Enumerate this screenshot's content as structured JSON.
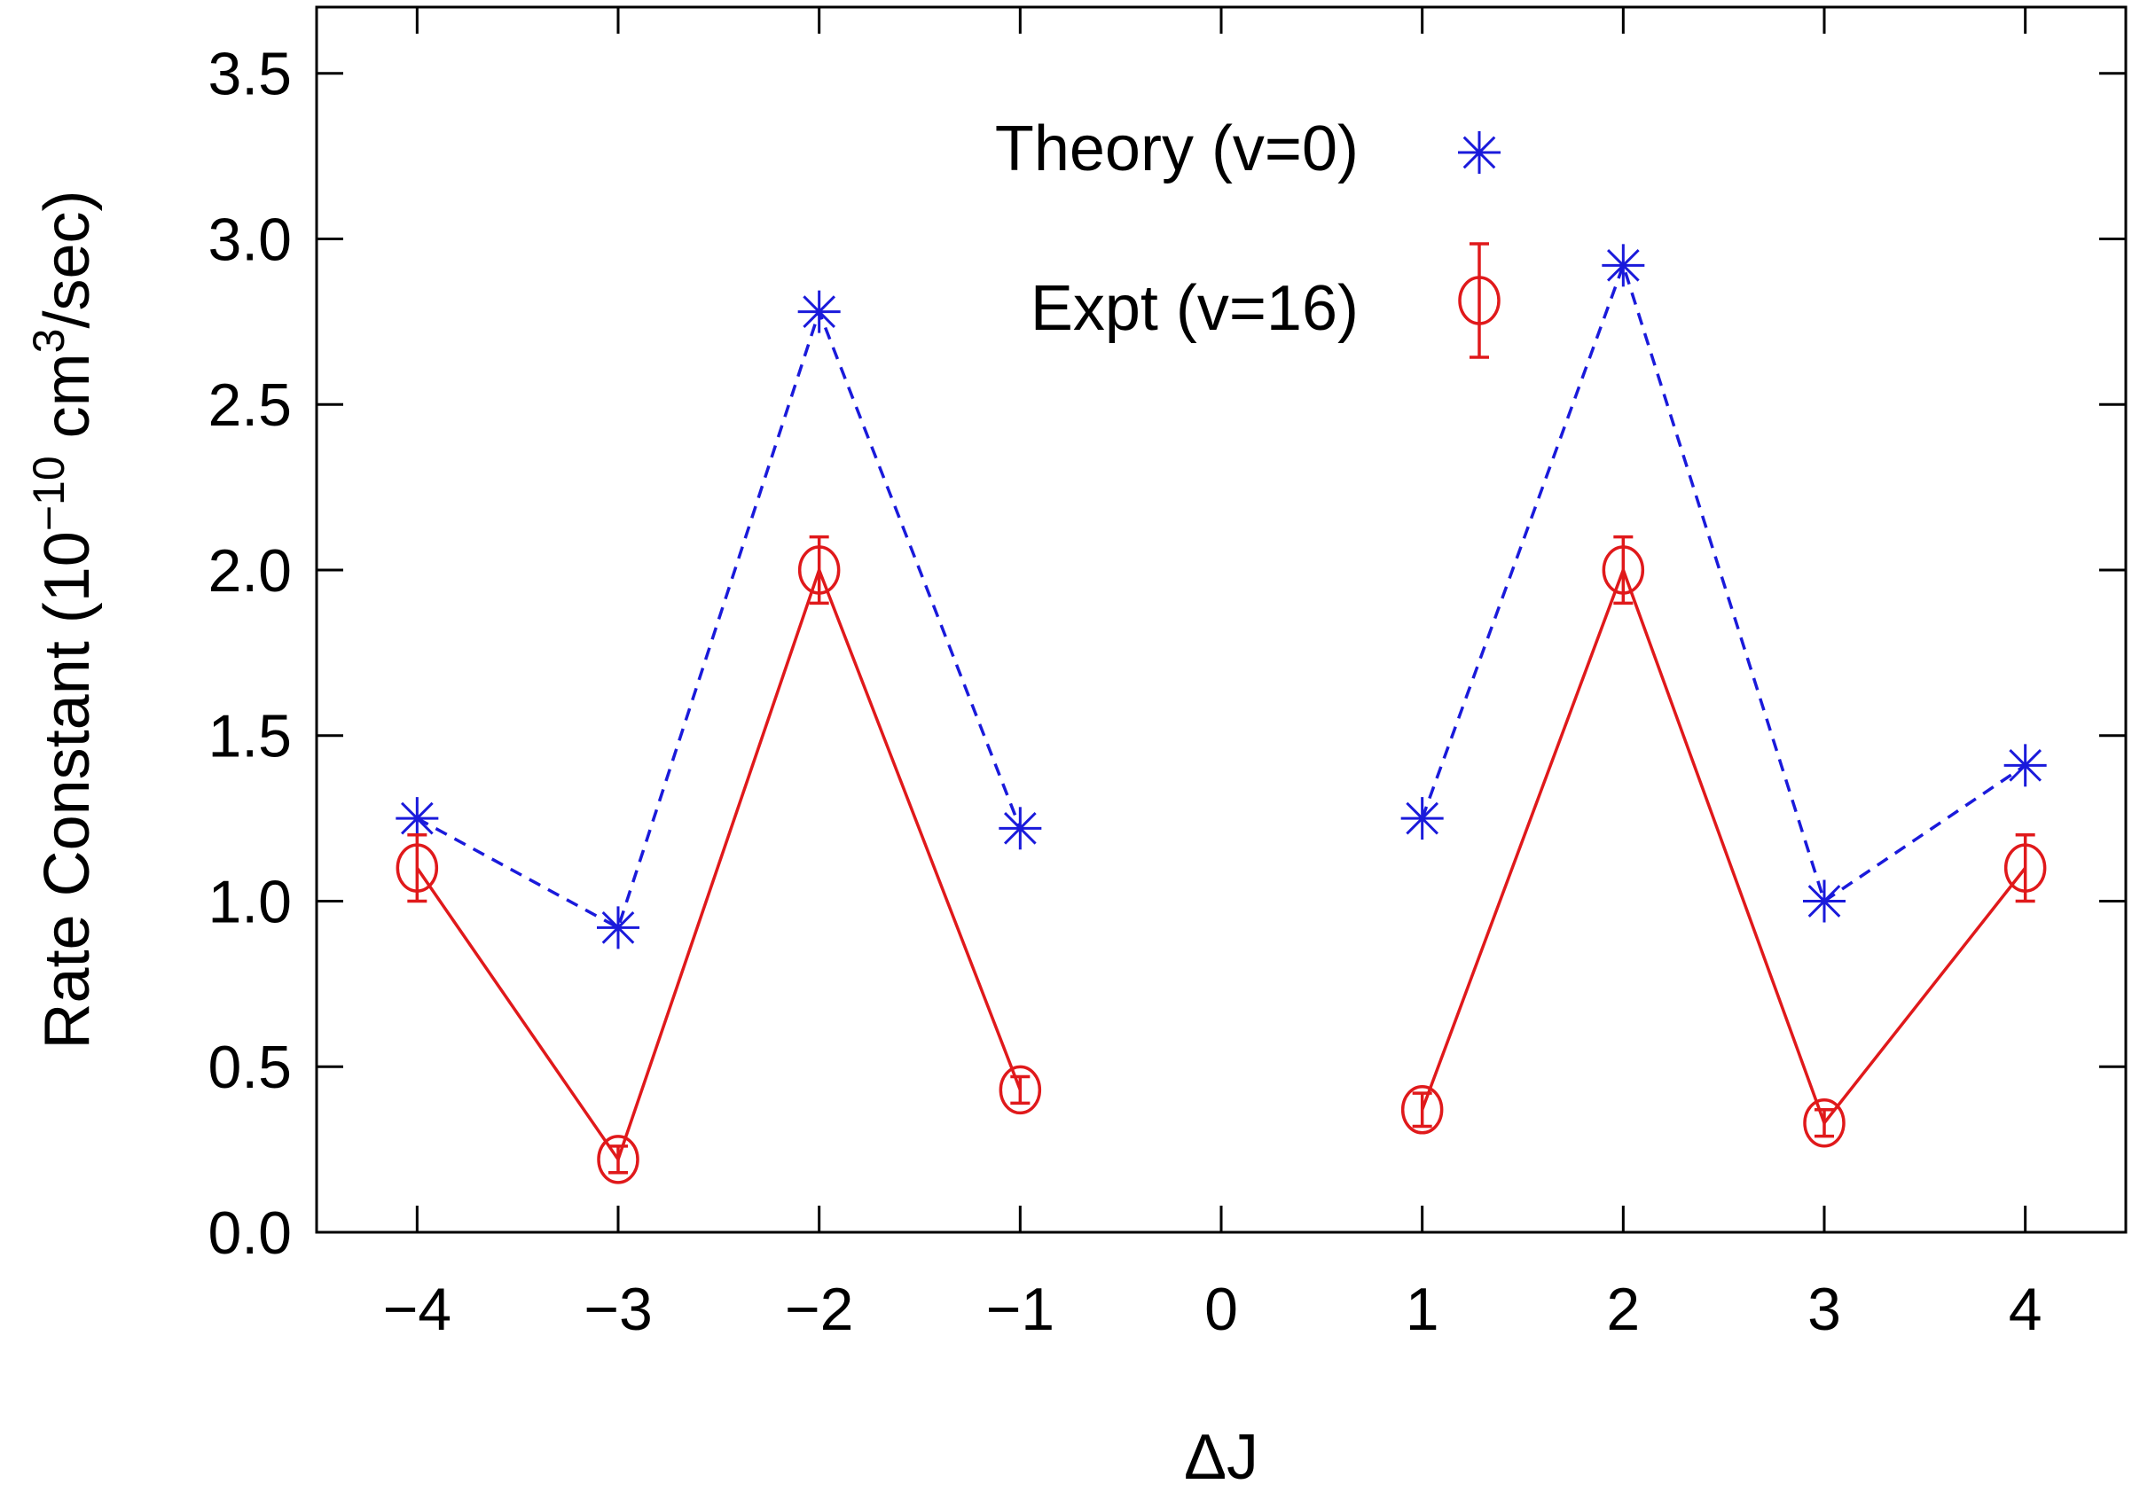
{
  "chart_data": {
    "type": "scatter",
    "xlabel": "ΔJ",
    "ylabel_main": "Rate Constant (10",
    "ylabel_exp1": "−10",
    "ylabel_mid": " cm",
    "ylabel_exp2": "3",
    "ylabel_end": "/sec)",
    "xlim": [
      -4.5,
      4.5
    ],
    "ylim": [
      0,
      3.7
    ],
    "xticks": [
      -4,
      -3,
      -2,
      -1,
      0,
      1,
      2,
      3,
      4
    ],
    "xtick_labels": [
      "−4",
      "−3",
      "−2",
      "−1",
      "0",
      "1",
      "2",
      "3",
      "4"
    ],
    "yticks": [
      0.0,
      0.5,
      1.0,
      1.5,
      2.0,
      2.5,
      3.0,
      3.5
    ],
    "ytick_labels": [
      "0.0",
      "0.5",
      "1.0",
      "1.5",
      "2.0",
      "2.5",
      "3.0",
      "3.5"
    ],
    "grid": false,
    "legend_position": "top-center",
    "series": [
      {
        "name": "Theory (v=0)",
        "color": "#1a1adb",
        "marker": "asterisk",
        "line": "dashed",
        "segments": [
          [
            {
              "x": -4,
              "y": 1.25
            },
            {
              "x": -3,
              "y": 0.92
            },
            {
              "x": -2,
              "y": 2.78
            },
            {
              "x": -1,
              "y": 1.22
            }
          ],
          [
            {
              "x": 1,
              "y": 1.25
            },
            {
              "x": 2,
              "y": 2.92
            },
            {
              "x": 3,
              "y": 1.0
            },
            {
              "x": 4,
              "y": 1.41
            }
          ]
        ]
      },
      {
        "name": "Expt (v=16)",
        "color": "#e0191b",
        "marker": "circle",
        "line": "solid",
        "segments": [
          [
            {
              "x": -4,
              "y": 1.1,
              "err": 0.1
            },
            {
              "x": -3,
              "y": 0.22,
              "err": 0.04
            },
            {
              "x": -2,
              "y": 2.0,
              "err": 0.1
            },
            {
              "x": -1,
              "y": 0.43,
              "err": 0.04
            }
          ],
          [
            {
              "x": 1,
              "y": 0.37,
              "err": 0.05
            },
            {
              "x": 2,
              "y": 2.0,
              "err": 0.1
            },
            {
              "x": 3,
              "y": 0.33,
              "err": 0.04
            },
            {
              "x": 4,
              "y": 1.1,
              "err": 0.1
            }
          ]
        ]
      }
    ]
  }
}
